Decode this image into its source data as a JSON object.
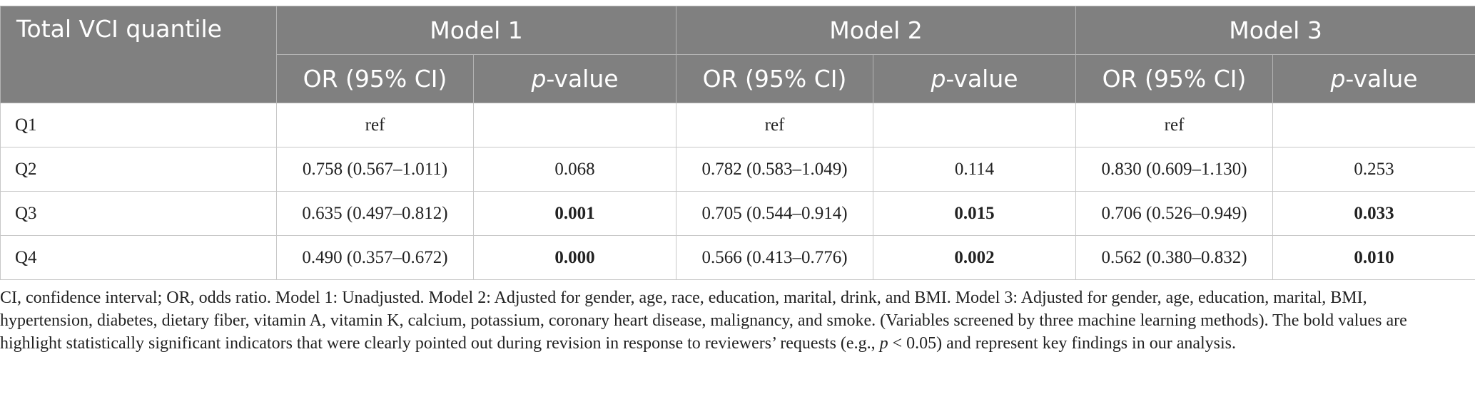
{
  "header": {
    "row_label": "Total VCI quantile",
    "models": [
      "Model 1",
      "Model 2",
      "Model 3"
    ],
    "or_label": "OR (95% CI)",
    "p_italic": "p",
    "p_suffix": "-value"
  },
  "rows": [
    {
      "label": "Q1",
      "m1_or": "ref",
      "m1_p": "",
      "m2_or": "ref",
      "m2_p": "",
      "m3_or": "ref",
      "m3_p": ""
    },
    {
      "label": "Q2",
      "m1_or": "0.758 (0.567–1.011)",
      "m1_p": "0.068",
      "m2_or": "0.782 (0.583–1.049)",
      "m2_p": "0.114",
      "m3_or": "0.830 (0.609–1.130)",
      "m3_p": "0.253"
    },
    {
      "label": "Q3",
      "m1_or": "0.635 (0.497–0.812)",
      "m1_p": "0.001",
      "m2_or": "0.705 (0.544–0.914)",
      "m2_p": "0.015",
      "m3_or": "0.706 (0.526–0.949)",
      "m3_p": "0.033"
    },
    {
      "label": "Q4",
      "m1_or": "0.490 (0.357–0.672)",
      "m1_p": "0.000",
      "m2_or": "0.566 (0.413–0.776)",
      "m2_p": "0.002",
      "m3_or": "0.562 (0.380–0.832)",
      "m3_p": "0.010"
    }
  ],
  "footnote": {
    "part1": "CI, confidence interval; OR, odds ratio. Model 1: Unadjusted. Model 2: Adjusted for gender, age, race, education, marital, drink, and BMI. Model 3: Adjusted for gender, age, education, marital, BMI, hypertension, diabetes, dietary fiber, vitamin A, vitamin K, calcium, potassium, coronary heart disease, malignancy, and smoke. (Variables screened by three machine learning methods). The bold values are highlight statistically significant indicators that were clearly pointed out during revision in response to reviewers’ requests (e.g., ",
    "p_italic": "p",
    "part2": " < 0.05) and represent key findings in our analysis."
  }
}
